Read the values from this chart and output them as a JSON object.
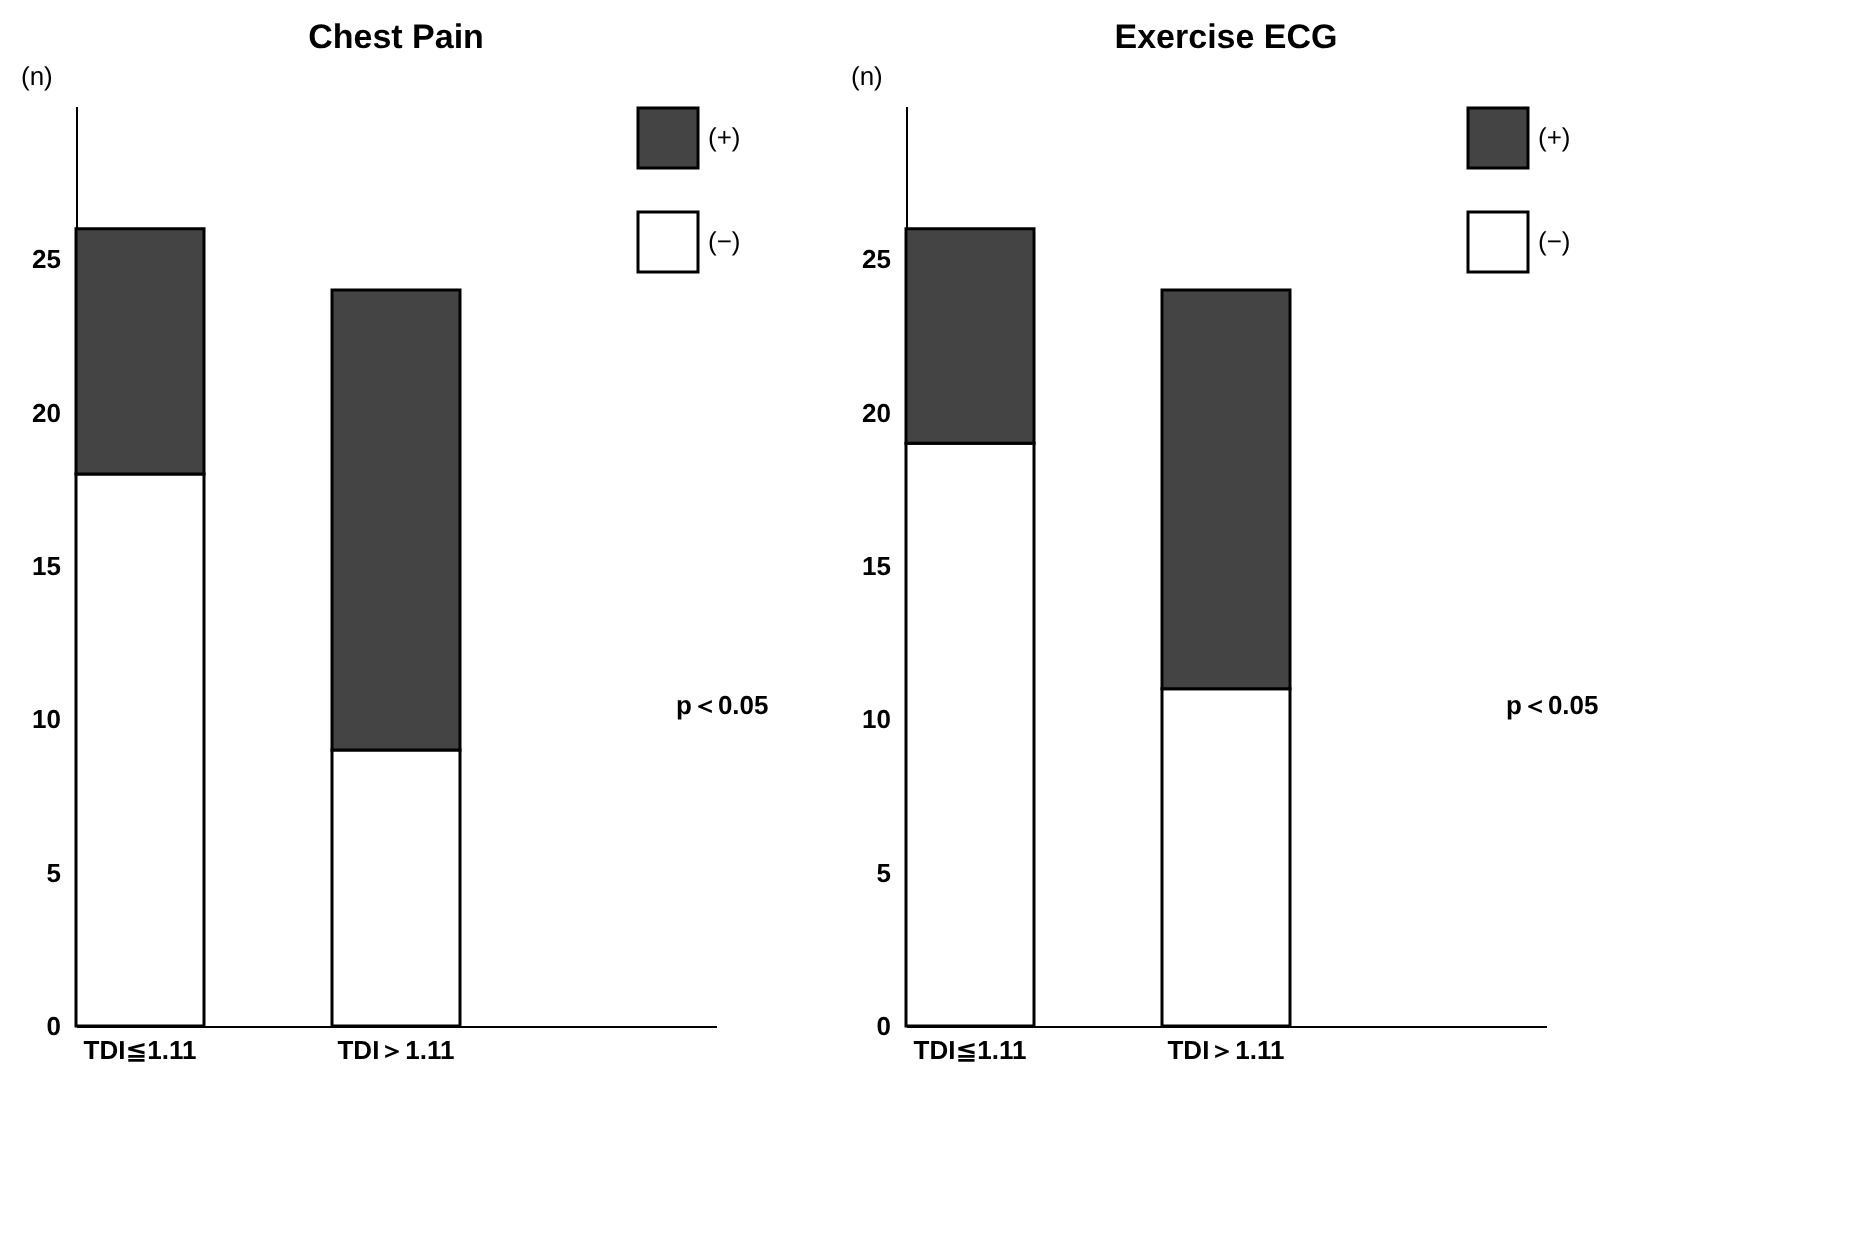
{
  "chart_data": [
    {
      "type": "bar",
      "title": "Chest  Pain",
      "ylabel": "(n)",
      "categories": [
        "TDI≦1.11",
        "TDI＞1.11"
      ],
      "stacked": true,
      "ylim": [
        0,
        30
      ],
      "yticks": [
        0,
        5,
        10,
        15,
        20,
        25
      ],
      "grid": false,
      "legend": "right",
      "annotations": [
        "p＜0.05"
      ],
      "series": [
        {
          "name": "(−)",
          "color": "#ffffff",
          "values": [
            18,
            9
          ]
        },
        {
          "name": "(+)",
          "color": "#444444",
          "values": [
            8,
            15
          ]
        }
      ]
    },
    {
      "type": "bar",
      "title": "Exercise  ECG",
      "ylabel": "(n)",
      "categories": [
        "TDI≦1.11",
        "TDI＞1.11"
      ],
      "stacked": true,
      "ylim": [
        0,
        30
      ],
      "yticks": [
        0,
        5,
        10,
        15,
        20,
        25
      ],
      "grid": false,
      "legend": "right",
      "annotations": [
        "p＜0.05"
      ],
      "series": [
        {
          "name": "(−)",
          "color": "#ffffff",
          "values": [
            19,
            11
          ]
        },
        {
          "name": "(+)",
          "color": "#444444",
          "values": [
            7,
            13
          ]
        }
      ]
    }
  ]
}
